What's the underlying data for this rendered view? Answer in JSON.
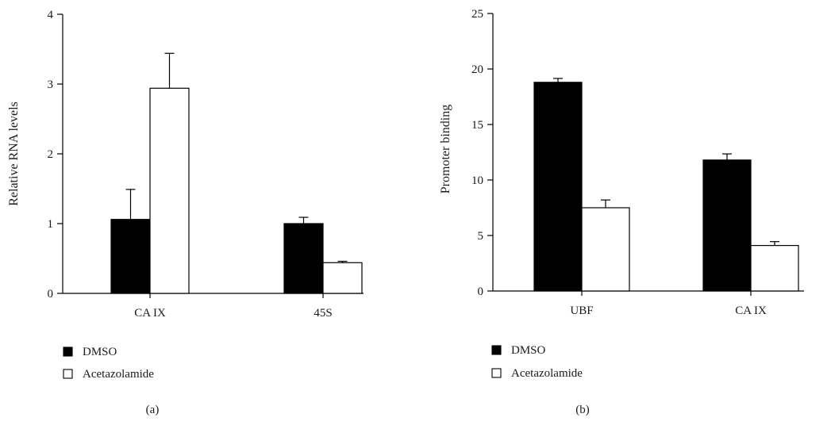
{
  "colors": {
    "dmso": "#000000",
    "acetazolamide": "#ffffff",
    "axis": "#000000"
  },
  "chart_data": [
    {
      "type": "bar",
      "panel_label": "(a)",
      "xlabel": "",
      "ylabel": "Relative RNA levels",
      "ylim": [
        0,
        4
      ],
      "yticks": [
        "0",
        "1",
        "2",
        "3",
        "4"
      ],
      "categories": [
        "CA IX",
        "45S"
      ],
      "series": [
        {
          "name": "DMSO",
          "values": [
            1.06,
            1.0
          ],
          "errors": [
            0.43,
            0.09
          ]
        },
        {
          "name": "Acetazolamide",
          "values": [
            2.94,
            0.44
          ],
          "errors": [
            0.5,
            0.02
          ]
        }
      ],
      "legend": [
        "DMSO",
        "Acetazolamide"
      ],
      "legend_placement": "bottom-left",
      "grid": false
    },
    {
      "type": "bar",
      "panel_label": "(b)",
      "xlabel": "",
      "ylabel": "Promoter binding",
      "ylim": [
        0,
        25
      ],
      "yticks": [
        "0",
        "5",
        "10",
        "15",
        "20",
        "25"
      ],
      "categories": [
        "UBF",
        "CA IX"
      ],
      "series": [
        {
          "name": "DMSO",
          "values": [
            18.8,
            11.8
          ],
          "errors": [
            0.35,
            0.55
          ]
        },
        {
          "name": "Acetazolamide",
          "values": [
            7.5,
            4.1
          ],
          "errors": [
            0.7,
            0.35
          ]
        }
      ],
      "legend": [
        "DMSO",
        "Acetazolamide"
      ],
      "legend_placement": "bottom-left",
      "grid": false
    }
  ]
}
